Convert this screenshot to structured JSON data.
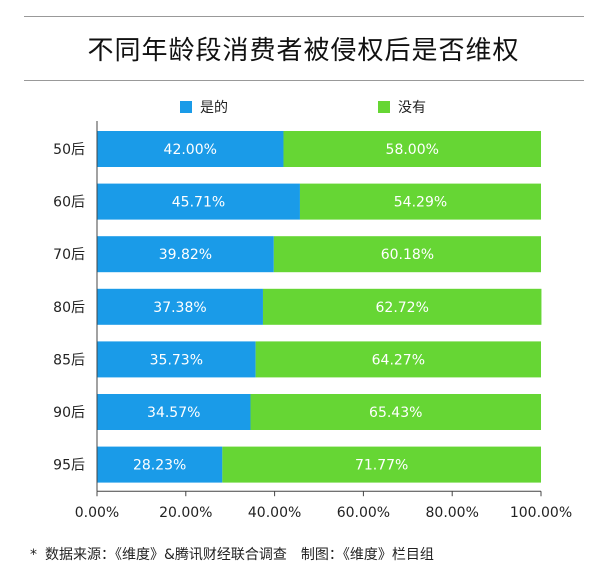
{
  "header": {
    "title": "不同年龄段消费者被侵权后是否维权"
  },
  "chart_data": {
    "type": "bar",
    "orientation": "horizontal",
    "stacked": true,
    "categories": [
      "50后",
      "60后",
      "70后",
      "80后",
      "85后",
      "90后",
      "95后"
    ],
    "series": [
      {
        "name": "是的",
        "color": "#1a9be8",
        "values": [
          42.0,
          45.71,
          39.82,
          37.38,
          35.73,
          34.57,
          28.23
        ],
        "labels": [
          "42.00%",
          "45.71%",
          "39.82%",
          "37.38%",
          "35.73%",
          "34.57%",
          "28.23%"
        ]
      },
      {
        "name": "没有",
        "color": "#66d634",
        "values": [
          58.0,
          54.29,
          60.18,
          62.72,
          64.27,
          65.43,
          71.77
        ],
        "labels": [
          "58.00%",
          "54.29%",
          "60.18%",
          "62.72%",
          "64.27%",
          "65.43%",
          "71.77%"
        ]
      }
    ],
    "xlim": [
      0,
      100
    ],
    "xticks": [
      "0.00%",
      "20.00%",
      "40.00%",
      "60.00%",
      "80.00%",
      "100.00%"
    ],
    "legend_position": "top",
    "grid": false
  },
  "footer": {
    "bullet": "*",
    "text": "数据来源：《维度》&腾讯财经联合调查　制图：《维度》栏目组"
  }
}
